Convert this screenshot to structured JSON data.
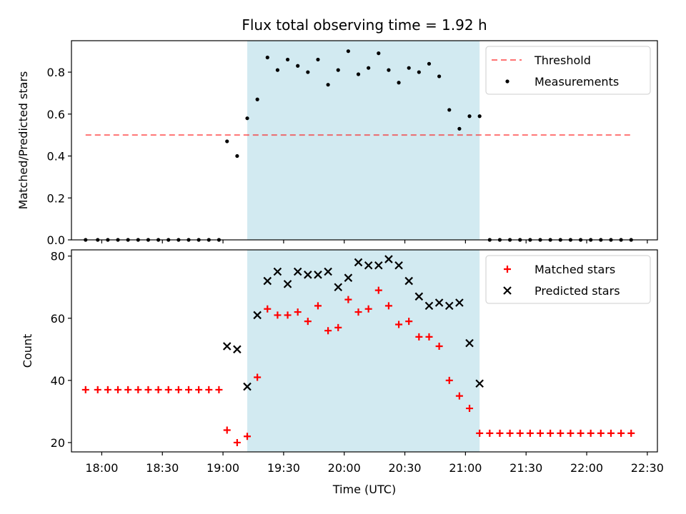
{
  "colors": {
    "shade": "#add8e6",
    "threshold": "#ff0000",
    "matched": "#ff0000",
    "predicted": "#000000",
    "measurement": "#000000"
  },
  "chart_data": [
    {
      "type": "scatter",
      "title": "Flux total observing time = 1.92 h",
      "xlabel": "",
      "ylabel": "Matched/Predicted stars",
      "xlim": [
        "17:45",
        "22:35"
      ],
      "ylim": [
        0,
        0.95
      ],
      "yticks": [
        "0.0",
        "0.2",
        "0.4",
        "0.6",
        "0.8"
      ],
      "grid": false,
      "legend": "top-right",
      "shaded_interval": [
        "19:12",
        "21:07"
      ],
      "series": [
        {
          "name": "Threshold",
          "kind": "dashed-line",
          "x": [
            "17:52",
            "22:22"
          ],
          "y": [
            0.5,
            0.5
          ]
        },
        {
          "name": "Measurements",
          "kind": "points",
          "x": [
            "17:52",
            "17:58",
            "18:03",
            "18:08",
            "18:13",
            "18:18",
            "18:23",
            "18:28",
            "18:33",
            "18:38",
            "18:43",
            "18:48",
            "18:53",
            "18:58",
            "19:02",
            "19:07",
            "19:12",
            "19:17",
            "19:22",
            "19:27",
            "19:32",
            "19:37",
            "19:42",
            "19:47",
            "19:52",
            "19:57",
            "20:02",
            "20:07",
            "20:12",
            "20:17",
            "20:22",
            "20:27",
            "20:32",
            "20:37",
            "20:42",
            "20:47",
            "20:52",
            "20:57",
            "21:02",
            "21:07",
            "21:12",
            "21:17",
            "21:22",
            "21:27",
            "21:32",
            "21:37",
            "21:42",
            "21:47",
            "21:52",
            "21:57",
            "22:02",
            "22:07",
            "22:12",
            "22:17",
            "22:22"
          ],
          "y": [
            0,
            0,
            0,
            0,
            0,
            0,
            0,
            0,
            0,
            0,
            0,
            0,
            0,
            0,
            0.47,
            0.4,
            0.58,
            0.67,
            0.87,
            0.81,
            0.86,
            0.83,
            0.8,
            0.86,
            0.74,
            0.81,
            0.9,
            0.79,
            0.82,
            0.89,
            0.81,
            0.75,
            0.82,
            0.8,
            0.84,
            0.78,
            0.62,
            0.53,
            0.59,
            0.59,
            0,
            0,
            0,
            0,
            0,
            0,
            0,
            0,
            0,
            0,
            0,
            0,
            0,
            0,
            0
          ]
        }
      ]
    },
    {
      "type": "scatter",
      "xlabel": "Time (UTC)",
      "ylabel": "Count",
      "xlim": [
        "17:45",
        "22:35"
      ],
      "ylim": [
        17,
        82
      ],
      "yticks": [
        "20",
        "40",
        "60",
        "80"
      ],
      "xticks": [
        "18:00",
        "18:30",
        "19:00",
        "19:30",
        "20:00",
        "20:30",
        "21:00",
        "21:30",
        "22:00",
        "22:30"
      ],
      "grid": false,
      "legend": "top-right",
      "shaded_interval": [
        "19:12",
        "21:07"
      ],
      "series": [
        {
          "name": "Matched stars",
          "marker": "+",
          "x": [
            "17:52",
            "17:58",
            "18:03",
            "18:08",
            "18:13",
            "18:18",
            "18:23",
            "18:28",
            "18:33",
            "18:38",
            "18:43",
            "18:48",
            "18:53",
            "18:58",
            "19:02",
            "19:07",
            "19:12",
            "19:17",
            "19:22",
            "19:27",
            "19:32",
            "19:37",
            "19:42",
            "19:47",
            "19:52",
            "19:57",
            "20:02",
            "20:07",
            "20:12",
            "20:17",
            "20:22",
            "20:27",
            "20:32",
            "20:37",
            "20:42",
            "20:47",
            "20:52",
            "20:57",
            "21:02",
            "21:07",
            "21:12",
            "21:17",
            "21:22",
            "21:27",
            "21:32",
            "21:37",
            "21:42",
            "21:47",
            "21:52",
            "21:57",
            "22:02",
            "22:07",
            "22:12",
            "22:17",
            "22:22"
          ],
          "y": [
            37,
            37,
            37,
            37,
            37,
            37,
            37,
            37,
            37,
            37,
            37,
            37,
            37,
            37,
            24,
            20,
            22,
            41,
            63,
            61,
            61,
            62,
            59,
            64,
            56,
            57,
            66,
            62,
            63,
            69,
            64,
            58,
            59,
            54,
            54,
            51,
            40,
            35,
            31,
            23,
            23,
            23,
            23,
            23,
            23,
            23,
            23,
            23,
            23,
            23,
            23,
            23,
            23,
            23,
            23
          ]
        },
        {
          "name": "Predicted stars",
          "marker": "x",
          "x": [
            "19:02",
            "19:07",
            "19:12",
            "19:17",
            "19:22",
            "19:27",
            "19:32",
            "19:37",
            "19:42",
            "19:47",
            "19:52",
            "19:57",
            "20:02",
            "20:07",
            "20:12",
            "20:17",
            "20:22",
            "20:27",
            "20:32",
            "20:37",
            "20:42",
            "20:47",
            "20:52",
            "20:57",
            "21:02",
            "21:07"
          ],
          "y": [
            51,
            50,
            38,
            61,
            72,
            75,
            71,
            75,
            74,
            74,
            75,
            70,
            73,
            78,
            77,
            77,
            79,
            77,
            72,
            67,
            64,
            65,
            64,
            65,
            52,
            39
          ]
        }
      ]
    }
  ]
}
